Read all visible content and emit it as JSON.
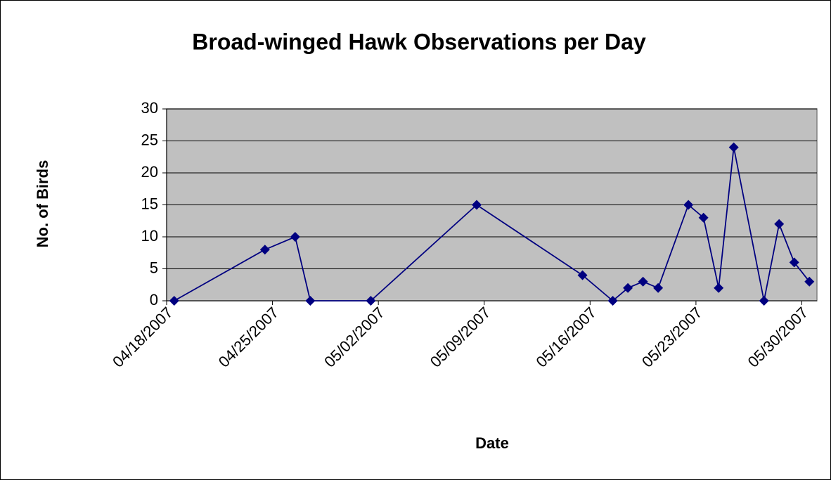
{
  "chart_data": {
    "type": "line",
    "title": "Broad-winged Hawk Observations per Day",
    "x_label": "Date",
    "y_label": "No. of Birds",
    "x": [
      "04/18/2007",
      "04/24/2007",
      "04/26/2007",
      "04/27/2007",
      "05/01/2007",
      "05/08/2007",
      "05/15/2007",
      "05/17/2007",
      "05/18/2007",
      "05/19/2007",
      "05/20/2007",
      "05/22/2007",
      "05/23/2007",
      "05/24/2007",
      "05/25/2007",
      "05/27/2007",
      "05/28/2007",
      "05/29/2007",
      "05/30/2007"
    ],
    "series": [
      {
        "name": "Broad-winged Hawk",
        "color": "#000080",
        "values": [
          0,
          8,
          10,
          0,
          0,
          15,
          4,
          0,
          2,
          3,
          2,
          15,
          13,
          2,
          24,
          0,
          12,
          6,
          3
        ]
      }
    ],
    "xlim": [
      "04/18/2007",
      "05/31/2007"
    ],
    "xticks": [
      "04/18/2007",
      "04/25/2007",
      "05/02/2007",
      "05/09/2007",
      "05/16/2007",
      "05/23/2007",
      "05/30/2007"
    ],
    "ylim": [
      0,
      30
    ],
    "yticks": [
      0,
      5,
      10,
      15,
      20,
      25,
      30
    ],
    "grid": true
  }
}
